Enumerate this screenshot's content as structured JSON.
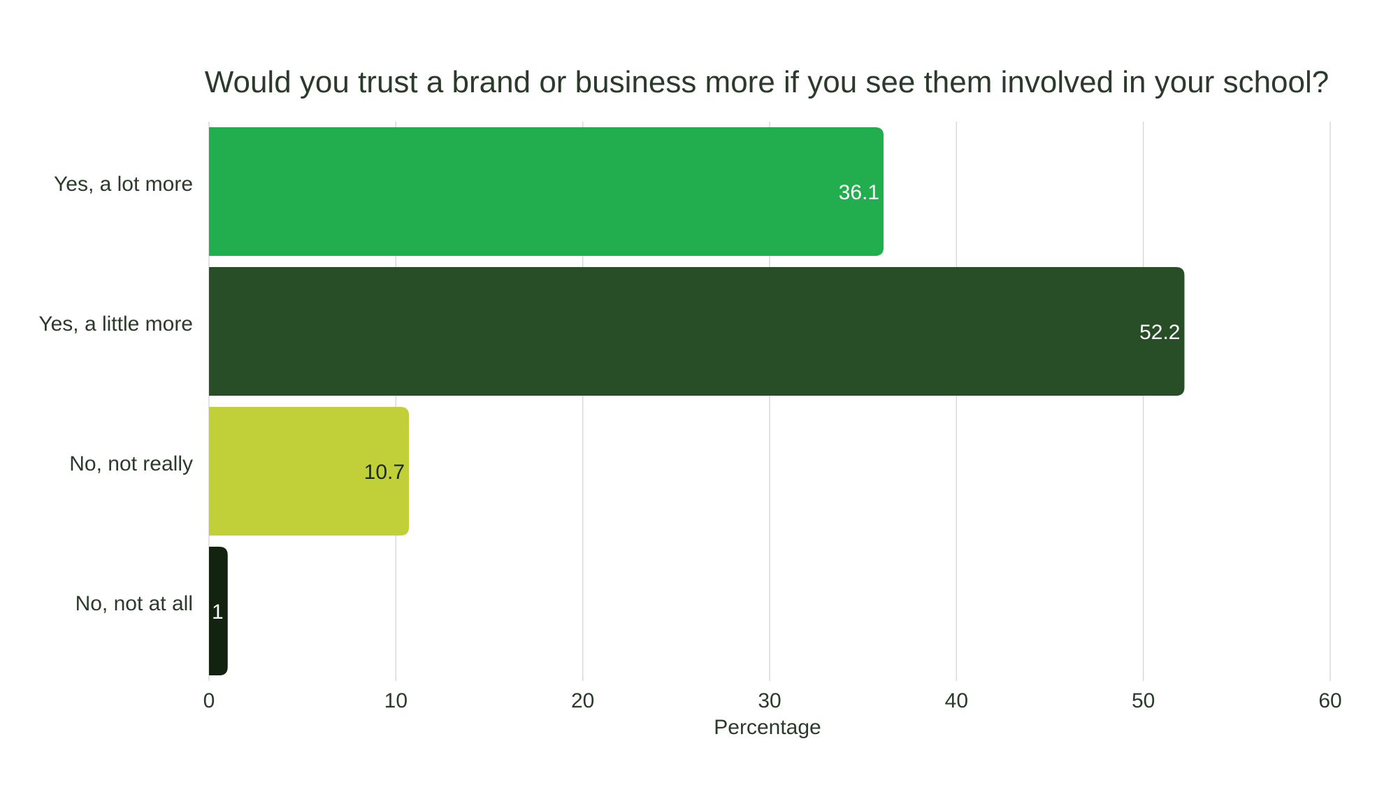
{
  "chart_data": {
    "type": "bar",
    "orientation": "horizontal",
    "title": "Would you trust a brand or business more if you see them involved in your school?",
    "xlabel": "Percentage",
    "ylabel": "",
    "categories": [
      "Yes, a lot more",
      "Yes, a little more",
      "No, not really",
      "No, not at all"
    ],
    "values": [
      36.1,
      52.2,
      10.7,
      1
    ],
    "value_labels": [
      "36.1",
      "52.2",
      "10.7",
      "1"
    ],
    "bar_colors": [
      "#22ae4f",
      "#284e27",
      "#c1cf38",
      "#12240f"
    ],
    "value_label_colors": [
      "#ffffff",
      "#ffffff",
      "#1b2b1b",
      "#ffffff"
    ],
    "xlim": [
      0,
      60
    ],
    "xticks": [
      0,
      10,
      20,
      30,
      40,
      50,
      60
    ],
    "xtick_labels": [
      "0",
      "10",
      "20",
      "30",
      "40",
      "50",
      "60"
    ],
    "grid": true,
    "legend": "none"
  },
  "colors": {
    "background": "#ffffff",
    "text": "#2b3a2b",
    "grid": "#d9d9d9"
  }
}
